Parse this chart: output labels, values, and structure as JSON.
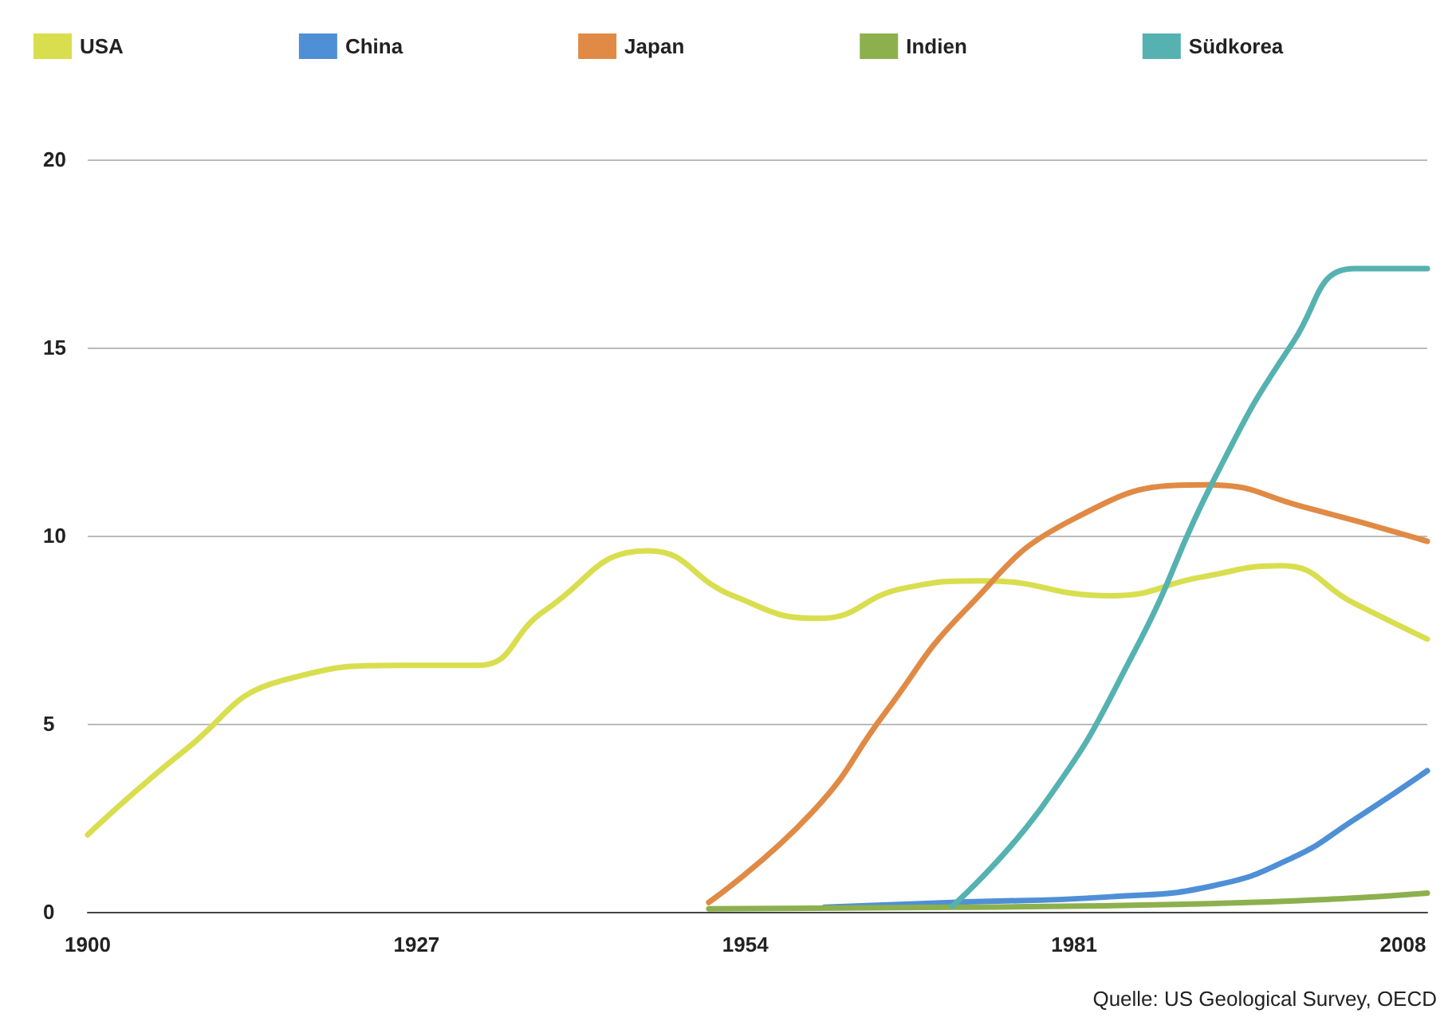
{
  "chart_data": {
    "type": "line",
    "annotations": [
      "Quelle: US Geological Survey, OECD"
    ],
    "xlim": [
      1900,
      2010
    ],
    "xticks": [
      1900,
      1927,
      1954,
      1981,
      2008
    ],
    "ylim": [
      0,
      20
    ],
    "yticks": [
      0,
      5,
      10,
      15,
      20
    ],
    "grid": "y",
    "legend": "top",
    "marker": "none",
    "series": [
      {
        "name": "USA",
        "color": "#d9de4f",
        "x": [
          1900,
          1908,
          1916,
          1926,
          1932,
          1937.5,
          1946,
          1953,
          1960,
          1967,
          1973.5,
          1984,
          1991.5,
          1998,
          2004,
          2010
        ],
        "values": [
          2.05,
          4.3,
          6.15,
          6.55,
          6.55,
          8.0,
          9.6,
          8.4,
          7.8,
          8.6,
          8.8,
          8.4,
          8.9,
          9.2,
          8.2,
          7.25
        ]
      },
      {
        "name": "China",
        "color": "#4f8fd6",
        "x": [
          1960.5,
          1971,
          1984,
          1992.5,
          1999,
          2004,
          2010
        ],
        "values": [
          0.12,
          0.25,
          0.4,
          0.7,
          1.45,
          2.45,
          3.75
        ]
      },
      {
        "name": "Japan",
        "color": "#e08a45",
        "x": [
          1951,
          1959.5,
          1965.5,
          1972,
          1981,
          1992,
          2000,
          2010
        ],
        "values": [
          0.25,
          2.65,
          5.3,
          8.0,
          10.45,
          11.35,
          10.75,
          9.85
        ]
      },
      {
        "name": "Indien",
        "color": "#8db04f",
        "x": [
          1951,
          1971,
          1990,
          2003,
          2010
        ],
        "values": [
          0.08,
          0.12,
          0.2,
          0.35,
          0.5
        ]
      },
      {
        "name": "Südkorea",
        "color": "#55b2b0",
        "x": [
          1971,
          1978.5,
          1986,
          1992.5,
          1999,
          2004,
          2010
        ],
        "values": [
          0.15,
          2.85,
          6.95,
          11.5,
          15.15,
          17.1,
          17.1
        ]
      }
    ]
  }
}
